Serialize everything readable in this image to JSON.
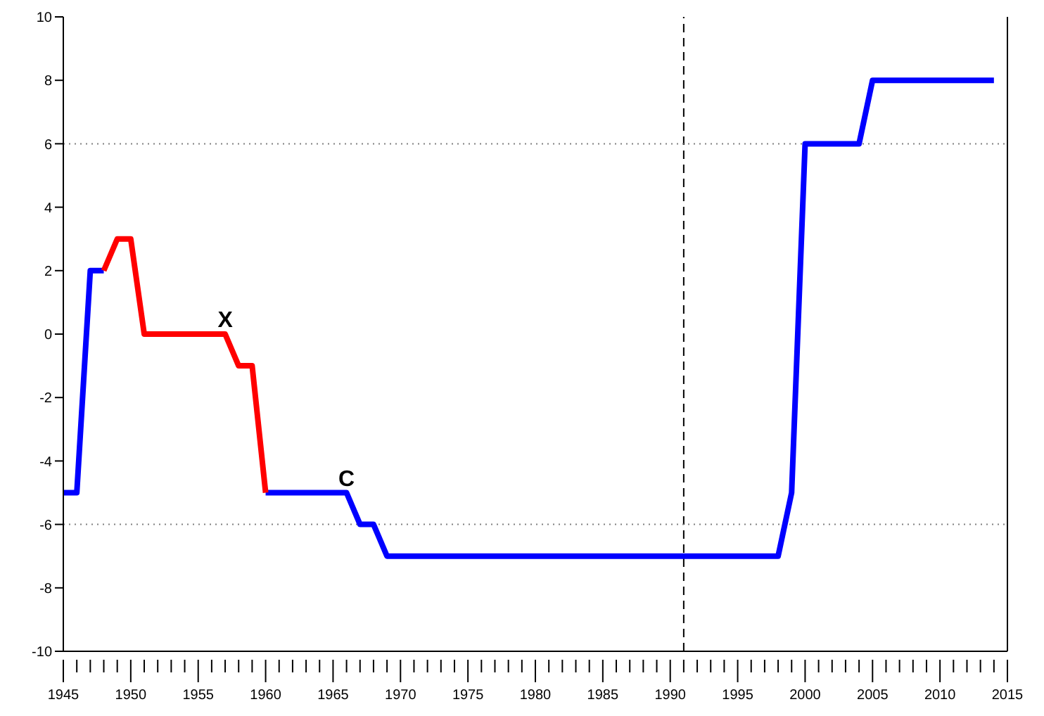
{
  "chart_data": {
    "type": "line",
    "series": [
      {
        "color": "#0000ff",
        "x": [
          1945,
          1946,
          1947,
          1948,
          1949,
          1950,
          1951,
          1952,
          1953,
          1954,
          1955,
          1956,
          1957,
          1958,
          1959,
          1960,
          1961,
          1962,
          1963,
          1964,
          1965,
          1966,
          1967,
          1968,
          1969,
          1970,
          1971,
          1972,
          1973,
          1974,
          1975,
          1976,
          1977,
          1978,
          1979,
          1980,
          1981,
          1982,
          1983,
          1984,
          1985,
          1986,
          1987,
          1988,
          1989,
          1990,
          1991,
          1992,
          1993,
          1994,
          1995,
          1996,
          1997,
          1998,
          1999,
          2000,
          2001,
          2002,
          2003,
          2004,
          2005,
          2006,
          2007,
          2008,
          2009,
          2010,
          2011,
          2012,
          2013,
          2014
        ],
        "values": [
          -5,
          -5,
          2,
          2,
          null,
          null,
          null,
          null,
          null,
          null,
          null,
          null,
          null,
          null,
          null,
          -5,
          -5,
          -5,
          -5,
          -5,
          -5,
          -5,
          -6,
          -6,
          -7,
          -7,
          -7,
          -7,
          -7,
          -7,
          -7,
          -7,
          -7,
          -7,
          -7,
          -7,
          -7,
          -7,
          -7,
          -7,
          -7,
          -7,
          -7,
          -7,
          -7,
          -7,
          -7,
          -7,
          -7,
          -7,
          -7,
          -7,
          -7,
          -7,
          -5,
          6,
          6,
          6,
          6,
          6,
          8,
          8,
          8,
          8,
          8,
          8,
          8,
          8,
          8,
          8
        ]
      },
      {
        "color": "#ff0000",
        "x": [
          1948,
          1949,
          1950,
          1951,
          1952,
          1953,
          1954,
          1955,
          1956,
          1957,
          1958,
          1959,
          1960
        ],
        "values": [
          2,
          3,
          3,
          0,
          0,
          0,
          0,
          0,
          0,
          0,
          -1,
          -1,
          -5
        ]
      }
    ],
    "xlim": [
      1945,
      2015
    ],
    "xticks": [
      1945,
      {
        "value": 1946,
        "label": null
      },
      {
        "value": 1947,
        "label": null
      },
      {
        "value": 1948,
        "label": null
      },
      {
        "value": 1949,
        "label": null
      },
      1950,
      {
        "value": 1951,
        "label": null
      },
      {
        "value": 1952,
        "label": null
      },
      {
        "value": 1953,
        "label": null
      },
      {
        "value": 1954,
        "label": null
      },
      1955,
      {
        "value": 1956,
        "label": null
      },
      {
        "value": 1957,
        "label": null
      },
      {
        "value": 1958,
        "label": null
      },
      {
        "value": 1959,
        "label": null
      },
      1960,
      {
        "value": 1961,
        "label": null
      },
      {
        "value": 1962,
        "label": null
      },
      {
        "value": 1963,
        "label": null
      },
      {
        "value": 1964,
        "label": null
      },
      1965,
      {
        "value": 1966,
        "label": null
      },
      {
        "value": 1967,
        "label": null
      },
      {
        "value": 1968,
        "label": null
      },
      {
        "value": 1969,
        "label": null
      },
      1970,
      {
        "value": 1971,
        "label": null
      },
      {
        "value": 1972,
        "label": null
      },
      {
        "value": 1973,
        "label": null
      },
      {
        "value": 1974,
        "label": null
      },
      1975,
      {
        "value": 1976,
        "label": null
      },
      {
        "value": 1977,
        "label": null
      },
      {
        "value": 1978,
        "label": null
      },
      {
        "value": 1979,
        "label": null
      },
      1980,
      {
        "value": 1981,
        "label": null
      },
      {
        "value": 1982,
        "label": null
      },
      {
        "value": 1983,
        "label": null
      },
      {
        "value": 1984,
        "label": null
      },
      1985,
      {
        "value": 1986,
        "label": null
      },
      {
        "value": 1987,
        "label": null
      },
      {
        "value": 1988,
        "label": null
      },
      {
        "value": 1989,
        "label": null
      },
      1990,
      {
        "value": 1991,
        "label": null
      },
      {
        "value": 1992,
        "label": null
      },
      {
        "value": 1993,
        "label": null
      },
      {
        "value": 1994,
        "label": null
      },
      1995,
      {
        "value": 1996,
        "label": null
      },
      {
        "value": 1997,
        "label": null
      },
      {
        "value": 1998,
        "label": null
      },
      {
        "value": 1999,
        "label": null
      },
      2000,
      {
        "value": 2001,
        "label": null
      },
      {
        "value": 2002,
        "label": null
      },
      {
        "value": 2003,
        "label": null
      },
      {
        "value": 2004,
        "label": null
      },
      2005,
      {
        "value": 2006,
        "label": null
      },
      {
        "value": 2007,
        "label": null
      },
      {
        "value": 2008,
        "label": null
      },
      {
        "value": 2009,
        "label": null
      },
      2010,
      {
        "value": 2011,
        "label": null
      },
      {
        "value": 2012,
        "label": null
      },
      {
        "value": 2013,
        "label": null
      },
      {
        "value": 2014,
        "label": null
      },
      2015
    ],
    "ylim": [
      -10,
      10
    ],
    "yticks": [
      -10,
      -8,
      -6,
      -4,
      -2,
      0,
      2,
      4,
      6,
      8,
      10
    ],
    "ref_lines": [
      {
        "axis": "x",
        "value": 1991,
        "color": "#000000",
        "line_style": "dashed"
      },
      {
        "axis": "y",
        "value": 6,
        "color": "#808080",
        "line_style": "dotted"
      },
      {
        "axis": "y",
        "value": -6,
        "color": "#808080",
        "line_style": "dotted"
      }
    ],
    "annotations": [
      {
        "text": "X",
        "x": 1957,
        "y": 0
      },
      {
        "text": "C",
        "x": 1966,
        "y": -5
      }
    ],
    "marker": "none",
    "line_style": "solid"
  }
}
